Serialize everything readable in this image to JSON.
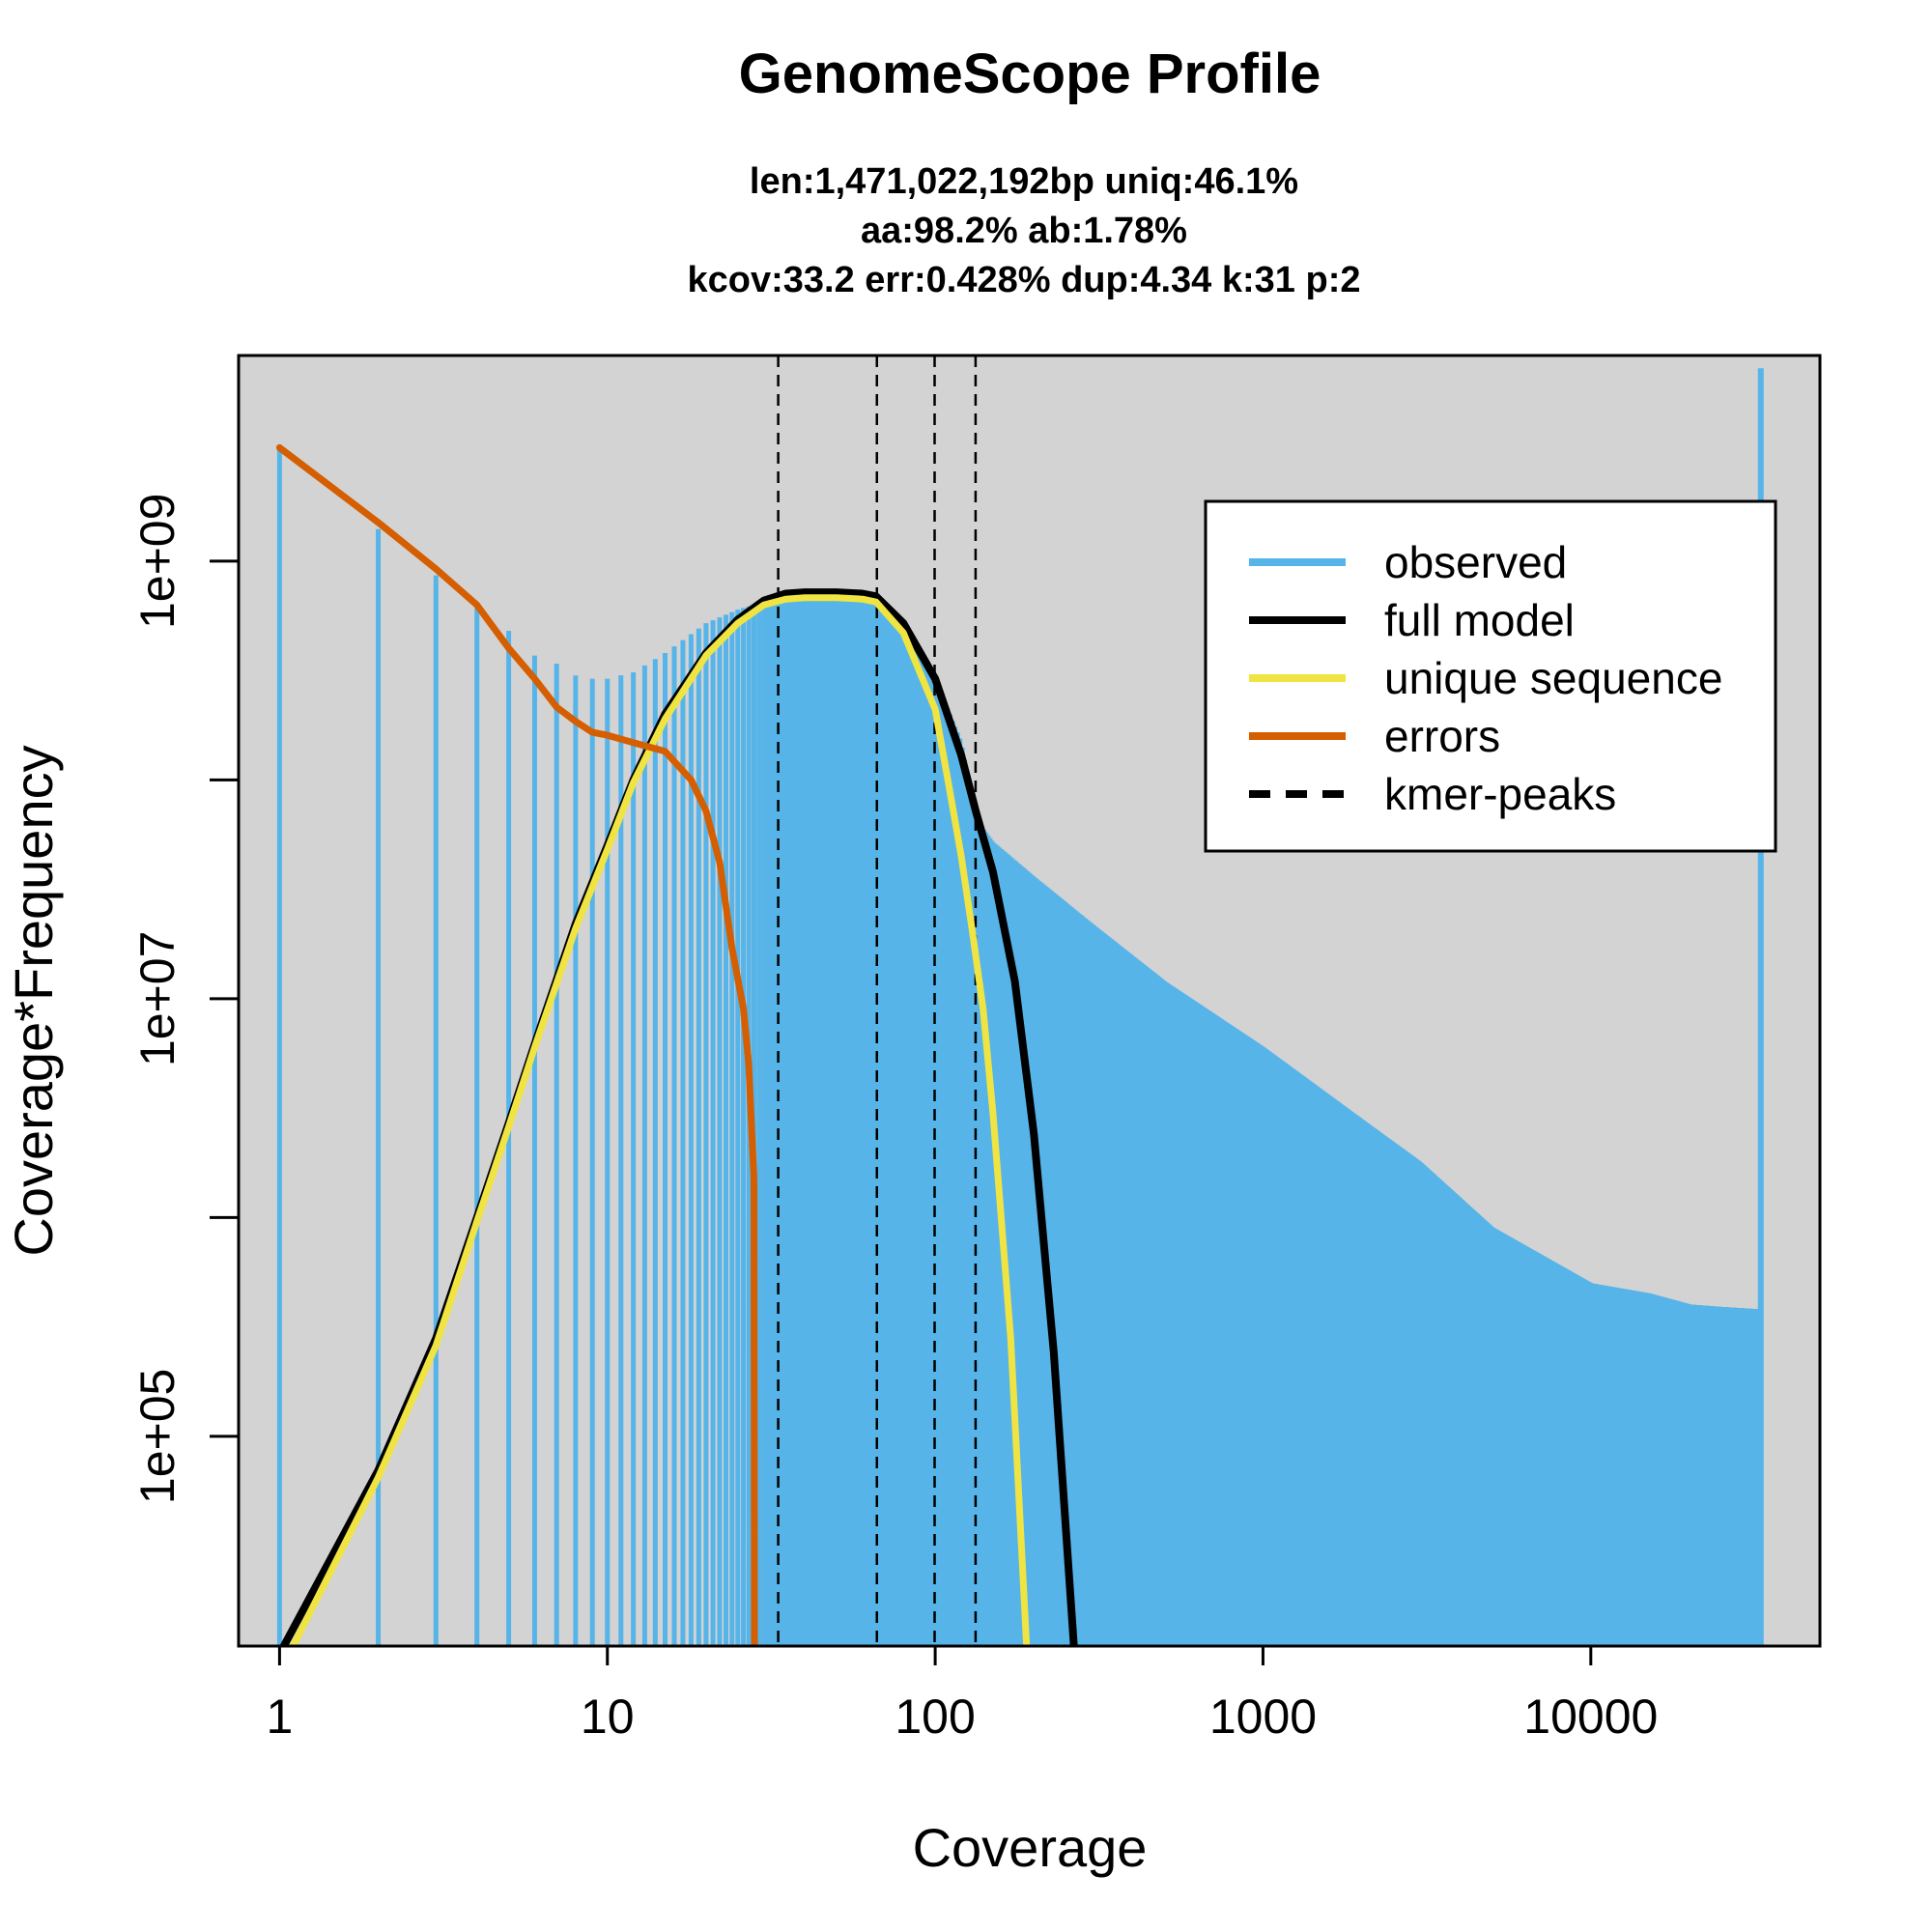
{
  "chart_data": {
    "type": "line",
    "title": "GenomeScope Profile",
    "subtitle_lines": [
      "len:1,471,022,192bp uniq:46.1%",
      "aa:98.2% ab:1.78%",
      "kcov:33.2 err:0.428%  dup:4.34  k:31 p:2"
    ],
    "xlabel": "Coverage",
    "ylabel": "Coverage*Frequency",
    "x_scale": "log",
    "y_scale": "log",
    "xlim": [
      0.75,
      50000
    ],
    "ylim": [
      11000,
      8700000000
    ],
    "x_ticks": [
      1,
      10,
      100,
      1000,
      10000
    ],
    "x_tick_labels": [
      "1",
      "10",
      "100",
      "1000",
      "10000"
    ],
    "y_ticks_major": [
      100000,
      10000000,
      1000000000
    ],
    "y_tick_labels": [
      "1e+05",
      "1e+07",
      "1e+09"
    ],
    "y_ticks_minor": [
      1000000,
      100000000,
      10000000000
    ],
    "background": "#d3d3d3",
    "kmer_peaks": [
      33.2,
      66.4,
      99.6,
      132.8
    ],
    "series": [
      {
        "name": "observed",
        "color": "#56b4e9",
        "x": [
          1,
          2,
          3,
          4,
          5,
          6,
          7,
          8,
          9,
          10,
          12,
          15,
          20,
          25,
          30,
          35,
          40,
          50,
          60,
          66,
          80,
          100,
          120,
          130,
          140,
          150,
          200,
          300,
          500,
          1000,
          2000,
          3000,
          5000,
          10000,
          15000,
          20000,
          25000,
          33000
        ],
        "y": [
          3300000000,
          1400000000,
          860000000,
          610000000,
          480000000,
          370000000,
          340000000,
          300000000,
          290000000,
          290000000,
          310000000,
          380000000,
          520000000,
          600000000,
          650000000,
          690000000,
          700000000,
          700000000,
          700000000,
          690000000,
          500000000,
          290000000,
          150000000,
          80000000,
          60000000,
          52000000,
          36000000,
          22000000,
          12000000,
          6000000,
          2800000,
          1800000,
          900000,
          500000,
          450000,
          400000,
          390000,
          380000
        ],
        "spike": {
          "x": 33000,
          "y": 7600000000
        }
      },
      {
        "name": "full model",
        "color": "#000000",
        "x": [
          1.03,
          2,
          3,
          4,
          5,
          6,
          8,
          10,
          12,
          15,
          20,
          25,
          30,
          35,
          40,
          50,
          60,
          66,
          80,
          100,
          120,
          133,
          150,
          175,
          200,
          230,
          265
        ],
        "y": [
          11000,
          70000,
          280000,
          1000000,
          2700000,
          6200000,
          22000000,
          50000000,
          100000000,
          200000000,
          380000000,
          540000000,
          660000000,
          710000000,
          720000000,
          720000000,
          710000000,
          690000000,
          520000000,
          290000000,
          130000000,
          72000000,
          38000000,
          12000000,
          2400000,
          240000,
          11000
        ]
      },
      {
        "name": "unique sequence",
        "color": "#f0e442",
        "x": [
          1.1,
          2,
          3,
          4,
          5,
          6,
          8,
          10,
          12,
          15,
          20,
          25,
          30,
          35,
          40,
          50,
          60,
          66,
          80,
          100,
          110,
          120,
          130,
          140,
          150,
          170,
          190
        ],
        "y": [
          11000,
          65000,
          260000,
          960000,
          2600000,
          6000000,
          21000000,
          48000000,
          97000000,
          190000000,
          370000000,
          520000000,
          630000000,
          670000000,
          680000000,
          680000000,
          670000000,
          650000000,
          470000000,
          210000000,
          95000000,
          45000000,
          20000000,
          9000000,
          3000000,
          280000,
          11000
        ]
      },
      {
        "name": "errors",
        "color": "#d55e00",
        "x": [
          1,
          2,
          3,
          4,
          5,
          6,
          7,
          8,
          9,
          10,
          12,
          15,
          18,
          20,
          22,
          24,
          26,
          27,
          28,
          28.1
        ],
        "y": [
          3300000000,
          1500000000,
          920000000,
          630000000,
          400000000,
          290000000,
          215000000,
          185000000,
          165000000,
          160000000,
          148000000,
          135000000,
          100000000,
          72000000,
          42000000,
          17000000,
          9000000,
          5000000,
          1500000,
          11000
        ]
      }
    ],
    "legend": {
      "position": "top-right",
      "entries": [
        {
          "label": "observed",
          "color": "#56b4e9",
          "style": "solid"
        },
        {
          "label": "full model",
          "color": "#000000",
          "style": "solid"
        },
        {
          "label": "unique sequence",
          "color": "#f0e442",
          "style": "solid"
        },
        {
          "label": "errors",
          "color": "#d55e00",
          "style": "solid"
        },
        {
          "label": "kmer-peaks",
          "color": "#000000",
          "style": "dashed"
        }
      ]
    }
  }
}
